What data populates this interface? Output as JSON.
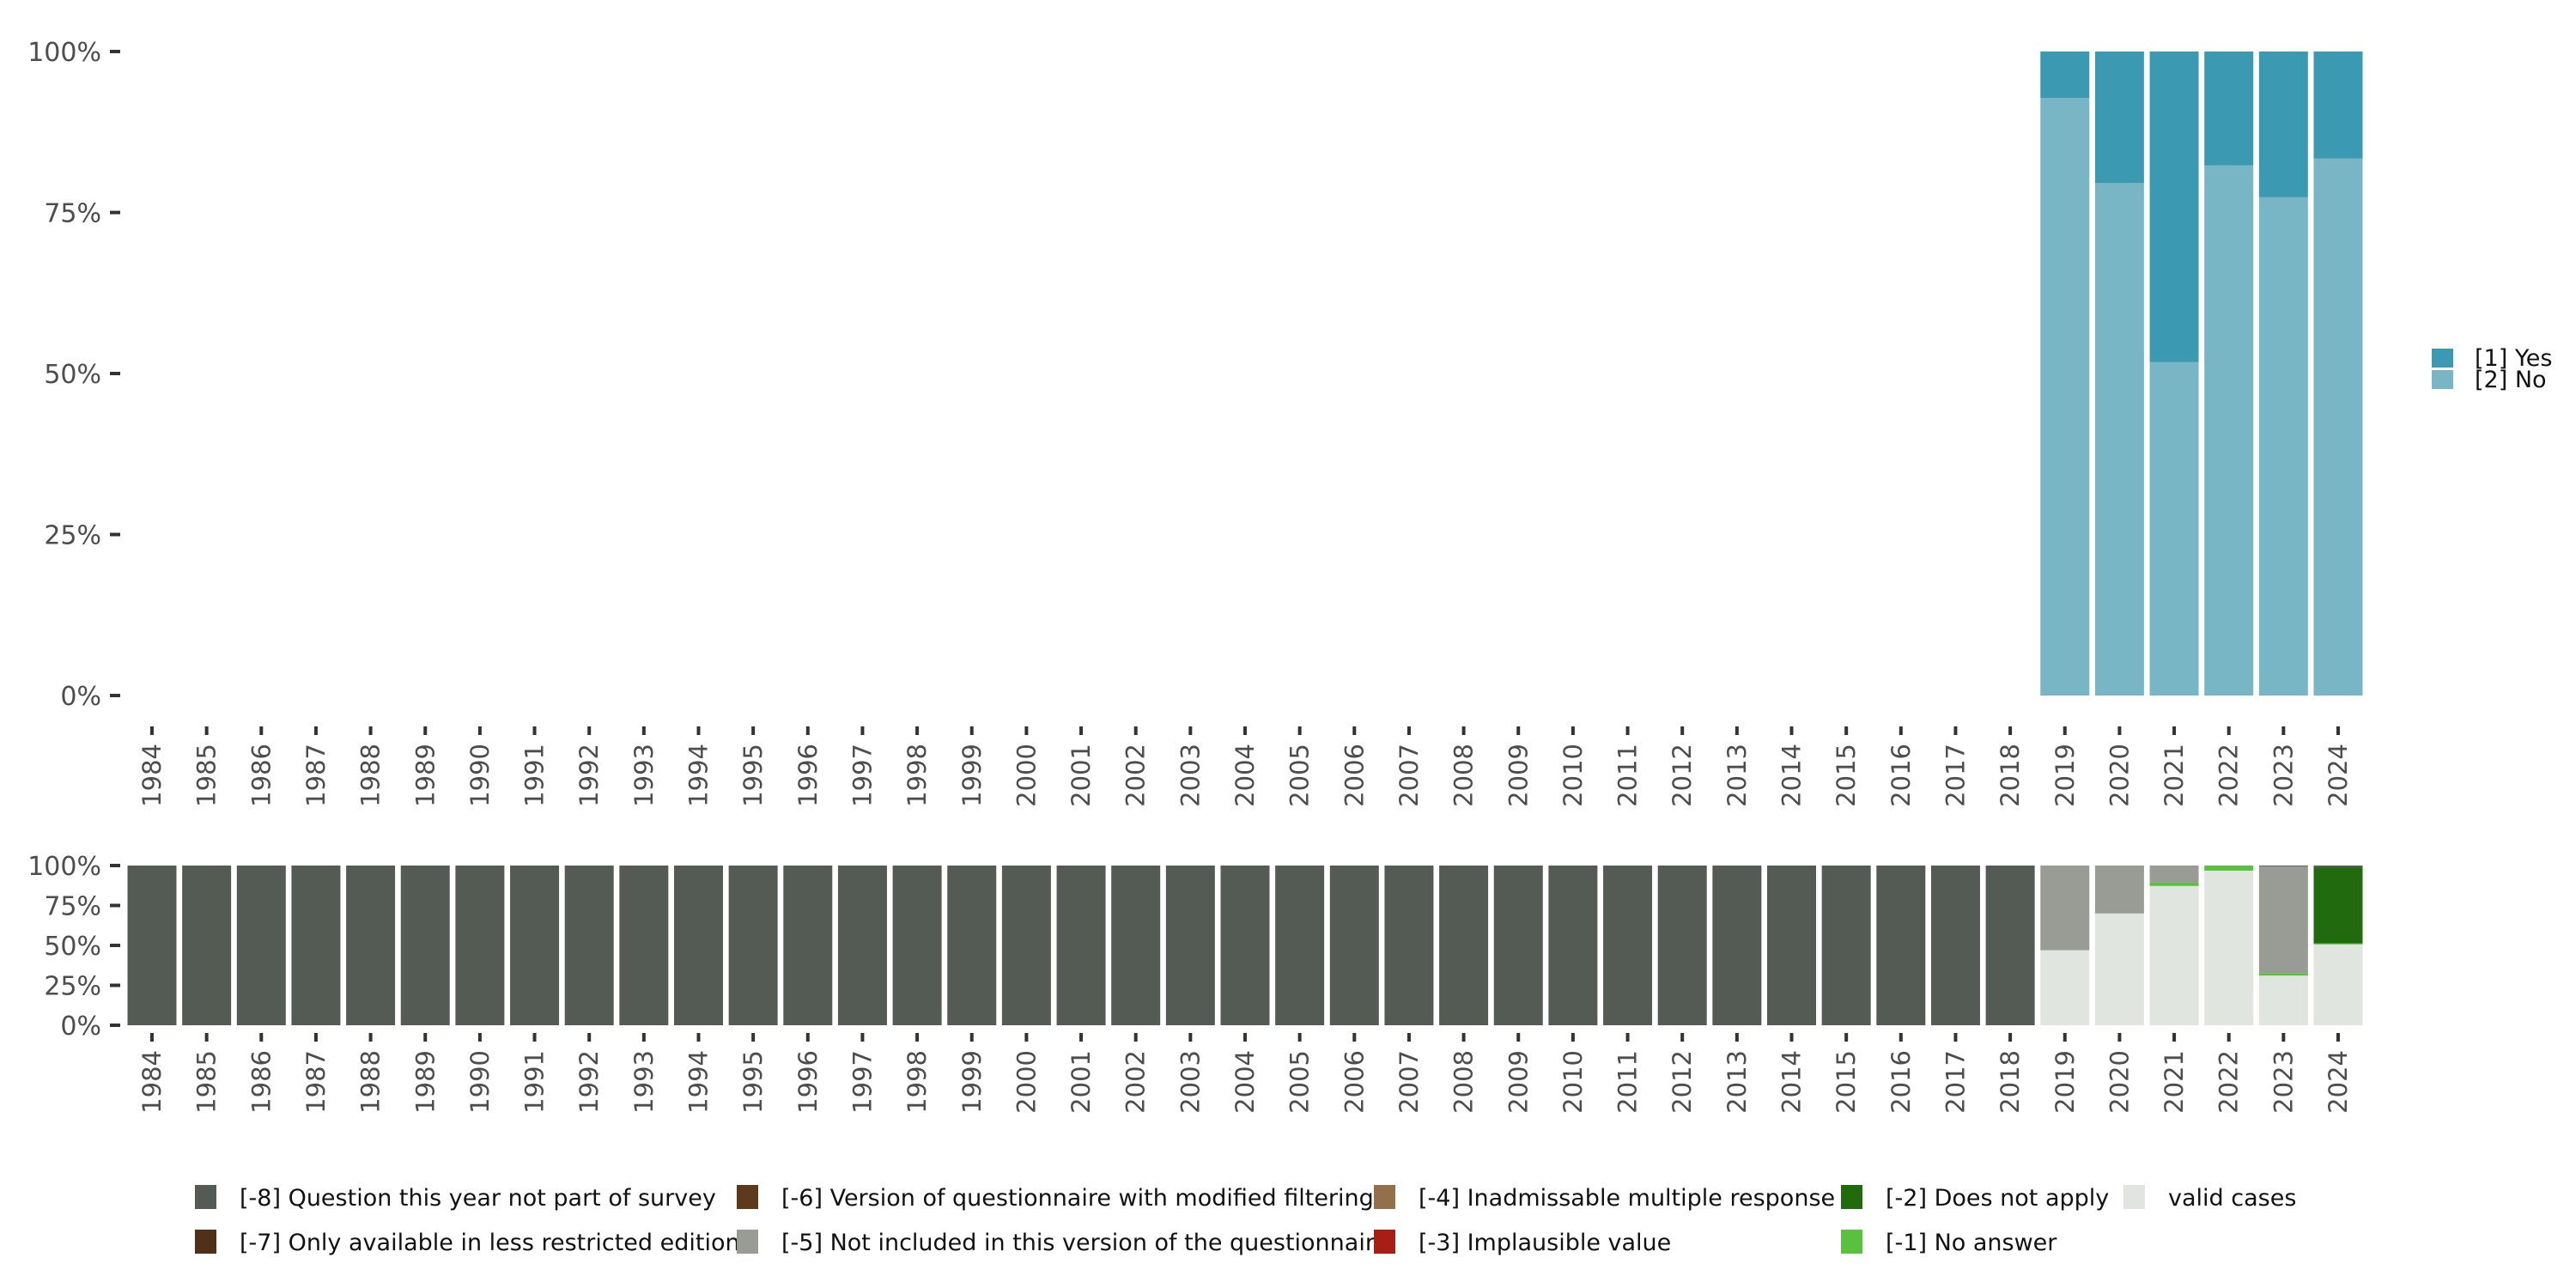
{
  "chart_data": [
    {
      "type": "bar",
      "stacked": true,
      "title": "",
      "xlabel": "",
      "ylabel": "",
      "ylim": [
        0,
        100
      ],
      "yticks": [
        "0%",
        "25%",
        "50%",
        "75%",
        "100%"
      ],
      "categories": [
        "1984",
        "1985",
        "1986",
        "1987",
        "1988",
        "1989",
        "1990",
        "1991",
        "1992",
        "1993",
        "1994",
        "1995",
        "1996",
        "1997",
        "1998",
        "1999",
        "2000",
        "2001",
        "2002",
        "2003",
        "2004",
        "2005",
        "2006",
        "2007",
        "2008",
        "2009",
        "2010",
        "2011",
        "2012",
        "2013",
        "2014",
        "2015",
        "2016",
        "2017",
        "2018",
        "2019",
        "2020",
        "2021",
        "2022",
        "2023",
        "2024"
      ],
      "legend_position": "right",
      "series": [
        {
          "name": "[2] No",
          "color": "#78B6C5",
          "values": [
            null,
            null,
            null,
            null,
            null,
            null,
            null,
            null,
            null,
            null,
            null,
            null,
            null,
            null,
            null,
            null,
            null,
            null,
            null,
            null,
            null,
            null,
            null,
            null,
            null,
            null,
            null,
            null,
            null,
            null,
            null,
            null,
            null,
            null,
            null,
            92.8,
            79.6,
            51.8,
            82.3,
            77.4,
            83.4
          ]
        },
        {
          "name": "[1] Yes",
          "color": "#3C99B2",
          "values": [
            null,
            null,
            null,
            null,
            null,
            null,
            null,
            null,
            null,
            null,
            null,
            null,
            null,
            null,
            null,
            null,
            null,
            null,
            null,
            null,
            null,
            null,
            null,
            null,
            null,
            null,
            null,
            null,
            null,
            null,
            null,
            null,
            null,
            null,
            null,
            7.2,
            20.4,
            48.2,
            17.7,
            22.6,
            16.6
          ]
        }
      ],
      "legend_order": [
        "[1] Yes",
        "[2] No"
      ]
    },
    {
      "type": "bar",
      "stacked": true,
      "title": "",
      "xlabel": "",
      "ylabel": "",
      "ylim": [
        0,
        100
      ],
      "yticks": [
        "0%",
        "25%",
        "50%",
        "75%",
        "100%"
      ],
      "categories": [
        "1984",
        "1985",
        "1986",
        "1987",
        "1988",
        "1989",
        "1990",
        "1991",
        "1992",
        "1993",
        "1994",
        "1995",
        "1996",
        "1997",
        "1998",
        "1999",
        "2000",
        "2001",
        "2002",
        "2003",
        "2004",
        "2005",
        "2006",
        "2007",
        "2008",
        "2009",
        "2010",
        "2011",
        "2012",
        "2013",
        "2014",
        "2015",
        "2016",
        "2017",
        "2018",
        "2019",
        "2020",
        "2021",
        "2022",
        "2023",
        "2024"
      ],
      "legend_position": "bottom",
      "series": [
        {
          "name": "valid cases",
          "color": "#E0E5E0",
          "values": [
            0,
            0,
            0,
            0,
            0,
            0,
            0,
            0,
            0,
            0,
            0,
            0,
            0,
            0,
            0,
            0,
            0,
            0,
            0,
            0,
            0,
            0,
            0,
            0,
            0,
            0,
            0,
            0,
            0,
            0,
            0,
            0,
            0,
            0,
            0,
            47,
            70,
            87.2,
            96.8,
            31.1,
            50.6
          ]
        },
        {
          "name": "[-1] No answer",
          "color": "#59C13F",
          "values": [
            0,
            0,
            0,
            0,
            0,
            0,
            0,
            0,
            0,
            0,
            0,
            0,
            0,
            0,
            0,
            0,
            0,
            0,
            0,
            0,
            0,
            0,
            0,
            0,
            0,
            0,
            0,
            0,
            0,
            0,
            0,
            0,
            0,
            0,
            0,
            0,
            0,
            2.1,
            3.2,
            1.6,
            0.7
          ]
        },
        {
          "name": "[-2] Does not apply",
          "color": "#216B0E",
          "values": [
            0,
            0,
            0,
            0,
            0,
            0,
            0,
            0,
            0,
            0,
            0,
            0,
            0,
            0,
            0,
            0,
            0,
            0,
            0,
            0,
            0,
            0,
            0,
            0,
            0,
            0,
            0,
            0,
            0,
            0,
            0,
            0,
            0,
            0,
            0,
            0,
            0,
            0,
            0,
            0,
            47.6
          ]
        },
        {
          "name": "[-3] Implausible value",
          "color": "#A61E14",
          "values": [
            0,
            0,
            0,
            0,
            0,
            0,
            0,
            0,
            0,
            0,
            0,
            0,
            0,
            0,
            0,
            0,
            0,
            0,
            0,
            0,
            0,
            0,
            0,
            0,
            0,
            0,
            0,
            0,
            0,
            0,
            0,
            0,
            0,
            0,
            0,
            0,
            0,
            0,
            0,
            0,
            0
          ]
        },
        {
          "name": "[-4] Inadmissable multiple response",
          "color": "#93704B",
          "values": [
            0,
            0,
            0,
            0,
            0,
            0,
            0,
            0,
            0,
            0,
            0,
            0,
            0,
            0,
            0,
            0,
            0,
            0,
            0,
            0,
            0,
            0,
            0,
            0,
            0,
            0,
            0,
            0,
            0,
            0,
            0,
            0,
            0,
            0,
            0,
            0,
            0,
            0,
            0,
            0,
            0
          ]
        },
        {
          "name": "[-5] Not included in this version of the questionnaire",
          "color": "#989C95",
          "values": [
            0,
            0,
            0,
            0,
            0,
            0,
            0,
            0,
            0,
            0,
            0,
            0,
            0,
            0,
            0,
            0,
            0,
            0,
            0,
            0,
            0,
            0,
            0,
            0,
            0,
            0,
            0,
            0,
            0,
            0,
            0,
            0,
            0,
            0,
            0,
            53,
            30,
            10.7,
            0,
            66.8,
            0
          ]
        },
        {
          "name": "[-6] Version of questionnaire with modified filtering",
          "color": "#5C3A1A",
          "values": [
            0,
            0,
            0,
            0,
            0,
            0,
            0,
            0,
            0,
            0,
            0,
            0,
            0,
            0,
            0,
            0,
            0,
            0,
            0,
            0,
            0,
            0,
            0,
            0,
            0,
            0,
            0,
            0,
            0,
            0,
            0,
            0,
            0,
            0,
            0,
            0,
            0,
            0,
            0,
            0,
            0
          ]
        },
        {
          "name": "[-7] Only available in less restricted edition",
          "color": "#4F3119",
          "values": [
            0,
            0,
            0,
            0,
            0,
            0,
            0,
            0,
            0,
            0,
            0,
            0,
            0,
            0,
            0,
            0,
            0,
            0,
            0,
            0,
            0,
            0,
            0,
            0,
            0,
            0,
            0,
            0,
            0,
            0,
            0,
            0,
            0,
            0,
            0,
            0,
            0,
            0,
            0,
            0,
            0
          ]
        },
        {
          "name": "[-8] Question this year not part of survey",
          "color": "#545B55",
          "values": [
            100,
            100,
            100,
            100,
            100,
            100,
            100,
            100,
            100,
            100,
            100,
            100,
            100,
            100,
            100,
            100,
            100,
            100,
            100,
            100,
            100,
            100,
            100,
            100,
            100,
            100,
            100,
            100,
            100,
            100,
            100,
            100,
            100,
            100,
            100,
            0,
            0,
            0,
            0,
            0.5,
            1.1
          ]
        }
      ],
      "legend_order": [
        "[-8] Question this year not part of survey",
        "[-7] Only available in less restricted edition",
        "[-6] Version of questionnaire with modified filtering",
        "[-5] Not included in this version of the questionnaire",
        "[-4] Inadmissable multiple response",
        "[-3] Implausible value",
        "[-2] Does not apply",
        "[-1] No answer",
        "valid cases"
      ]
    }
  ]
}
